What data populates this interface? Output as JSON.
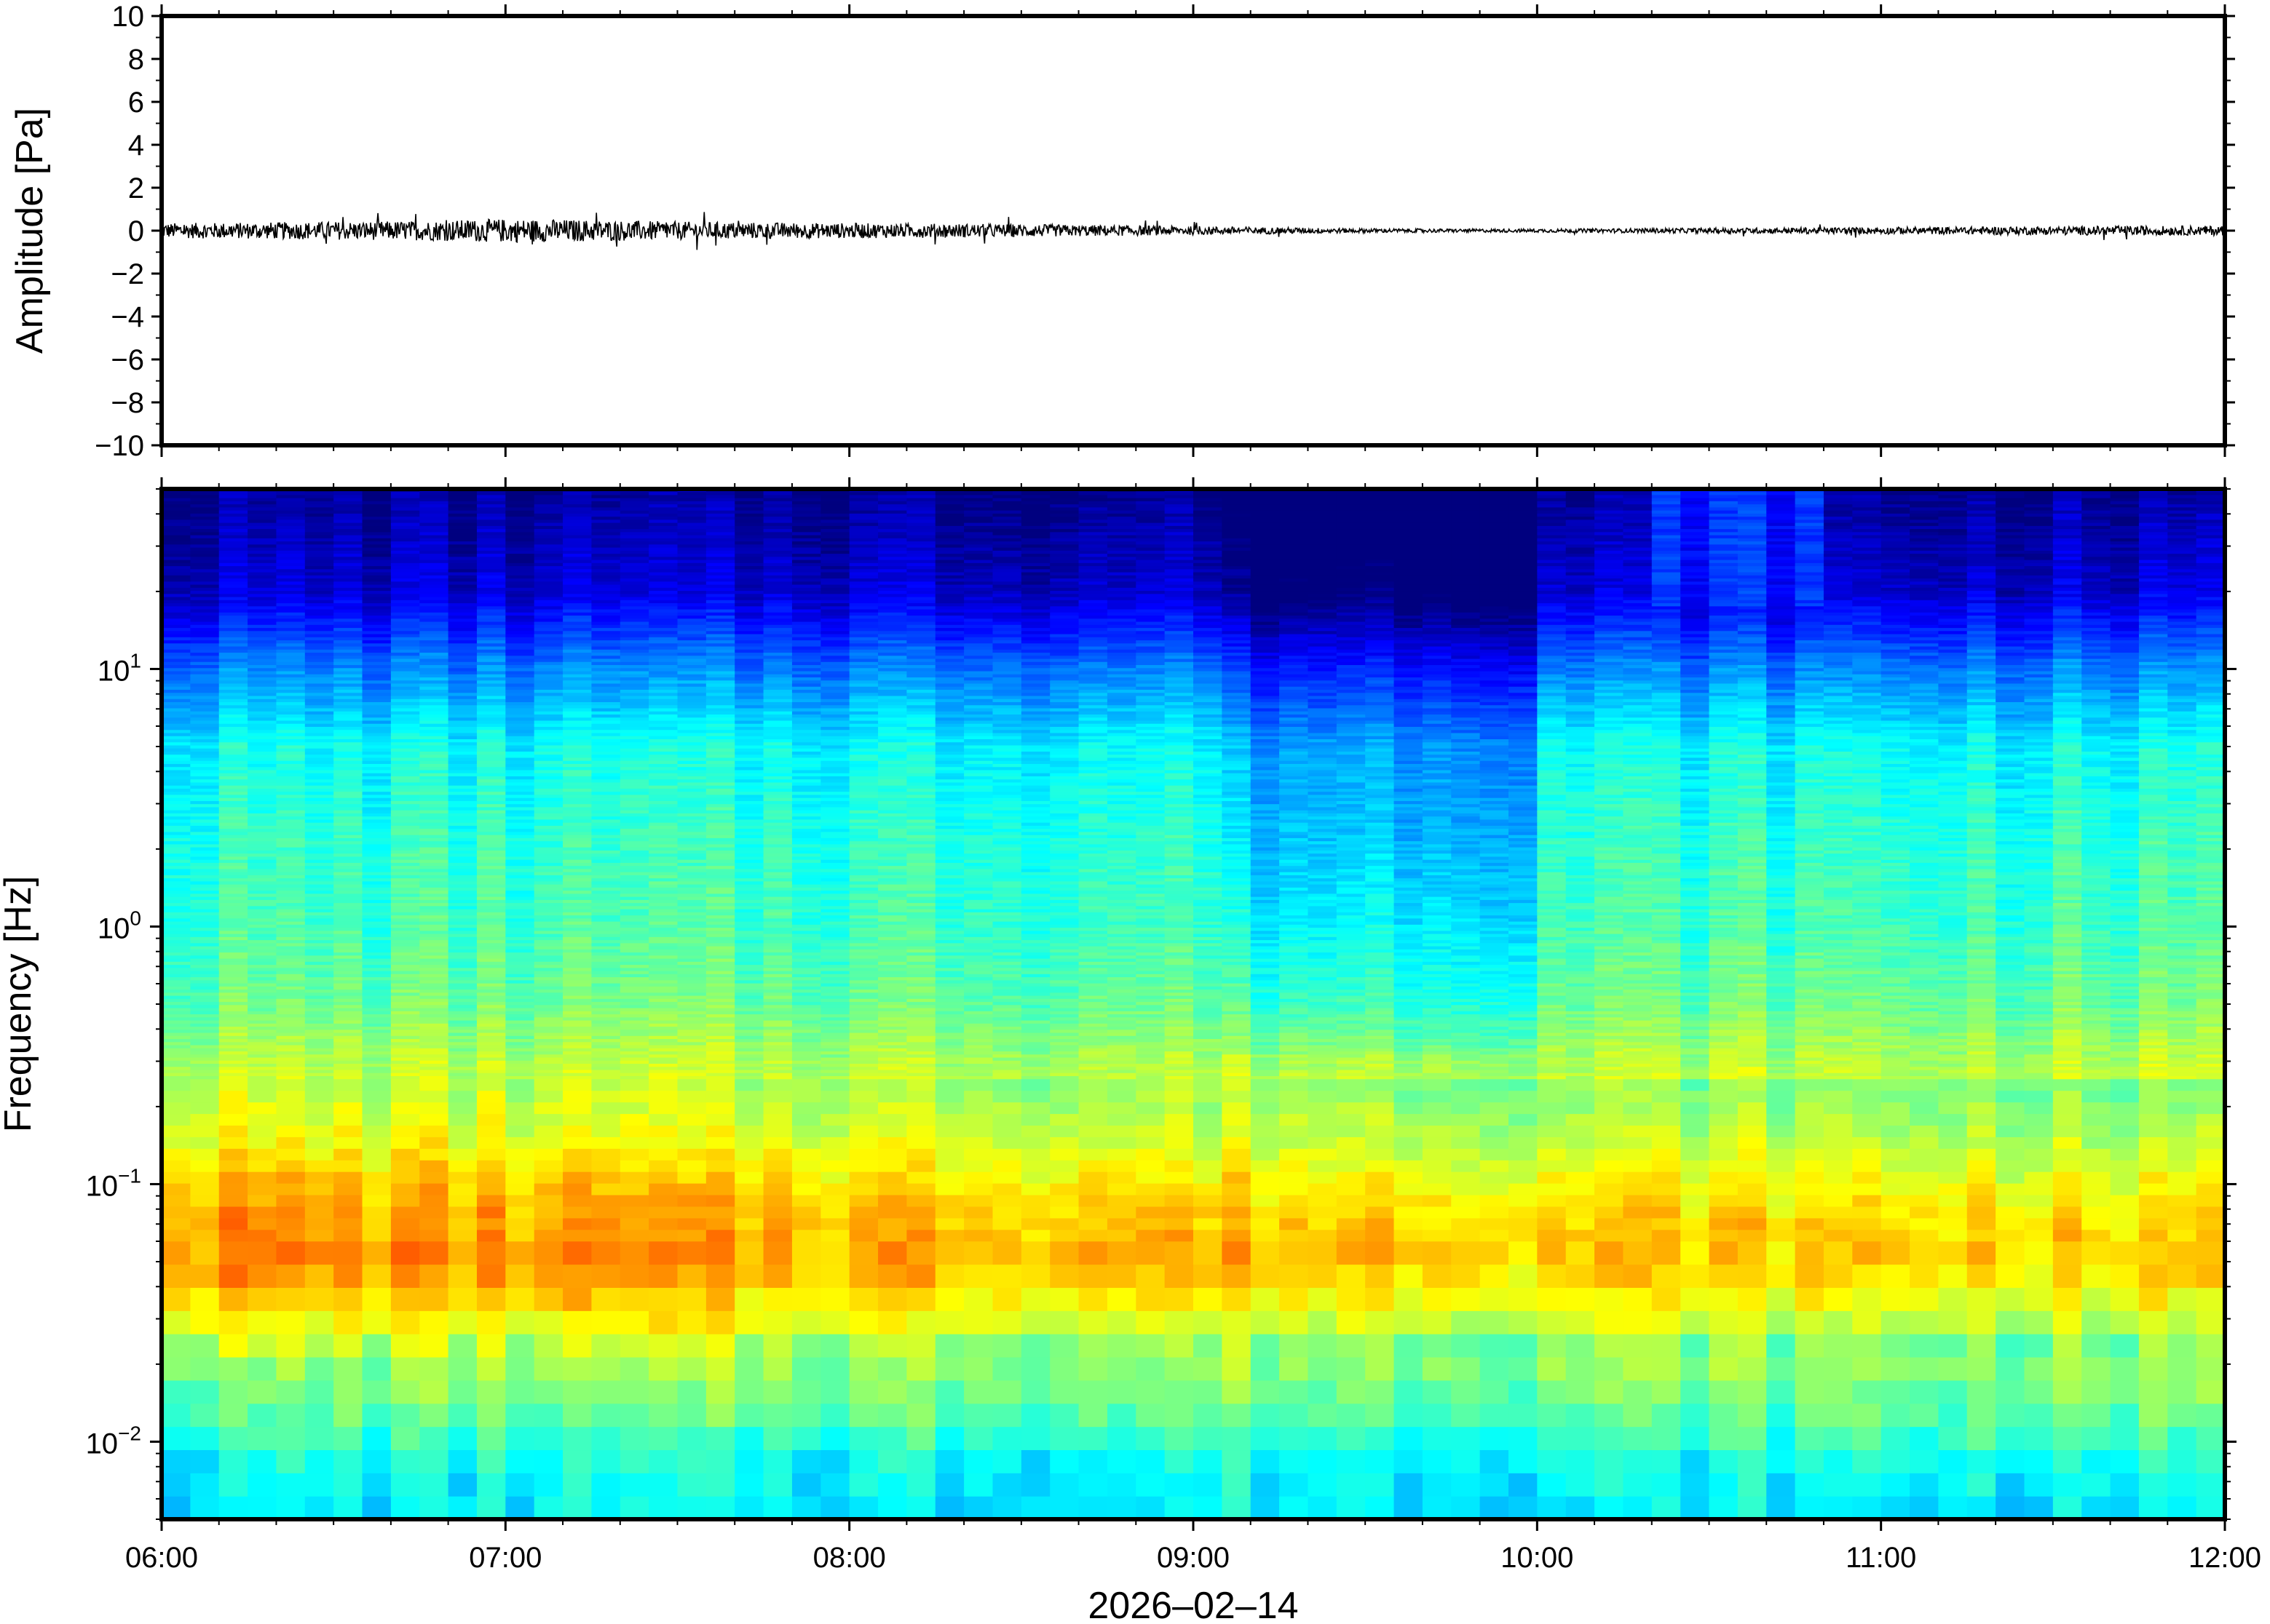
{
  "chart_data": [
    {
      "type": "line",
      "ylabel": "Amplitude [Pa]",
      "ylim": [
        -10,
        10
      ],
      "y_ticks": [
        "10",
        "8",
        "6",
        "4",
        "2",
        "0",
        "−2",
        "−4",
        "−6",
        "−8",
        "−10"
      ],
      "y_tick_values": [
        10,
        8,
        6,
        4,
        2,
        0,
        -2,
        -4,
        -6,
        -8,
        -10
      ],
      "xlim_hours": [
        6,
        12
      ],
      "series": [
        {
          "values_envelope": [
            [
              6.0,
              0.35
            ],
            [
              6.25,
              0.38
            ],
            [
              6.5,
              0.42
            ],
            [
              6.75,
              0.45
            ],
            [
              7.0,
              0.55
            ],
            [
              7.25,
              0.5
            ],
            [
              7.5,
              0.42
            ],
            [
              7.75,
              0.38
            ],
            [
              8.0,
              0.35
            ],
            [
              8.25,
              0.33
            ],
            [
              8.5,
              0.3
            ],
            [
              8.75,
              0.25
            ],
            [
              9.0,
              0.2
            ],
            [
              9.25,
              0.15
            ],
            [
              9.5,
              0.1
            ],
            [
              9.75,
              0.08
            ],
            [
              10.0,
              0.08
            ],
            [
              10.25,
              0.1
            ],
            [
              10.5,
              0.12
            ],
            [
              10.75,
              0.14
            ],
            [
              11.0,
              0.16
            ],
            [
              11.25,
              0.18
            ],
            [
              11.5,
              0.2
            ],
            [
              11.75,
              0.22
            ],
            [
              12.0,
              0.22
            ]
          ]
        }
      ]
    },
    {
      "type": "heatmap",
      "ylabel": "Frequency [Hz]",
      "yscale": "log",
      "ylim": [
        0.005,
        50
      ],
      "y_ticks": [
        {
          "value": 10,
          "base": "10",
          "exp": "1"
        },
        {
          "value": 1,
          "base": "10",
          "exp": "0"
        },
        {
          "value": 0.1,
          "base": "10",
          "exp": "−1"
        },
        {
          "value": 0.01,
          "base": "10",
          "exp": "−2"
        }
      ],
      "x_ticks": [
        "06:00",
        "07:00",
        "08:00",
        "09:00",
        "10:00",
        "11:00",
        "12:00"
      ],
      "x_tick_hours": [
        6,
        7,
        8,
        9,
        10,
        11,
        12
      ],
      "xlabel": "2026‒02‒14",
      "colormap": "jet",
      "colormap_stops": [
        "#00007f",
        "#0000ff",
        "#007fff",
        "#00ffff",
        "#7fff7f",
        "#ffff00",
        "#ff7f00",
        "#ff0000",
        "#7f0000"
      ],
      "intensity_profile": [
        [
          50,
          0.02
        ],
        [
          20,
          0.08
        ],
        [
          10,
          0.25
        ],
        [
          5,
          0.38
        ],
        [
          2,
          0.42
        ],
        [
          1,
          0.44
        ],
        [
          0.5,
          0.48
        ],
        [
          0.3,
          0.55
        ],
        [
          0.15,
          0.62
        ],
        [
          0.08,
          0.72
        ],
        [
          0.05,
          0.74
        ],
        [
          0.03,
          0.64
        ],
        [
          0.02,
          0.52
        ],
        [
          0.012,
          0.46
        ],
        [
          0.008,
          0.38
        ],
        [
          0.005,
          0.36
        ]
      ],
      "quiet_period_hours": [
        9.1,
        10.0
      ],
      "broadband_event_hours": [
        10.35,
        10.85
      ]
    }
  ]
}
